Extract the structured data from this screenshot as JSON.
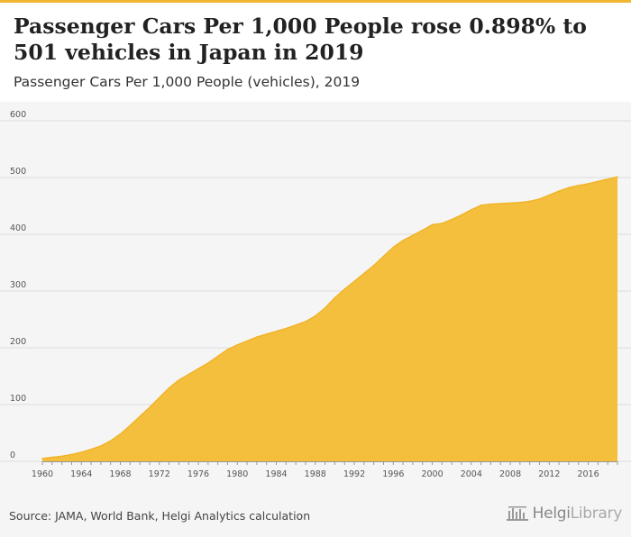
{
  "header": {
    "title": "Passenger Cars Per 1,000 People rose 0.898% to 501 vehicles in Japan in 2019",
    "subtitle": "Passenger Cars Per 1,000 People (vehicles), 2019"
  },
  "footer": {
    "source": "Source: JAMA, World Bank, Helgi Analytics calculation",
    "logo_main": "Helgi",
    "logo_suffix": "Library"
  },
  "colors": {
    "area_fill": "#f5bf3e",
    "area_stroke": "#f0b429",
    "accent_bar": "#f2b632",
    "grid": "#dddddd"
  },
  "chart_data": {
    "type": "area",
    "title": "Passenger Cars Per 1,000 People (vehicles), 2019",
    "xlabel": "",
    "ylabel": "",
    "xlim": [
      1960,
      2019
    ],
    "ylim": [
      0,
      600
    ],
    "yticks": [
      0,
      100,
      200,
      300,
      400,
      500,
      600
    ],
    "xticks": [
      1960,
      1964,
      1968,
      1972,
      1976,
      1980,
      1984,
      1988,
      1992,
      1996,
      2000,
      2004,
      2008,
      2012,
      2016
    ],
    "grid": true,
    "series": [
      {
        "name": "Passenger Cars Per 1,000 People",
        "x": [
          1960,
          1961,
          1962,
          1963,
          1964,
          1965,
          1966,
          1967,
          1968,
          1969,
          1970,
          1971,
          1972,
          1973,
          1974,
          1975,
          1976,
          1977,
          1978,
          1979,
          1980,
          1981,
          1982,
          1983,
          1984,
          1985,
          1986,
          1987,
          1988,
          1989,
          1990,
          1991,
          1992,
          1993,
          1994,
          1995,
          1996,
          1997,
          1998,
          1999,
          2000,
          2001,
          2002,
          2003,
          2004,
          2005,
          2006,
          2007,
          2008,
          2009,
          2010,
          2011,
          2012,
          2013,
          2014,
          2015,
          2016,
          2017,
          2018,
          2019
        ],
        "values": [
          5,
          7,
          9,
          12,
          16,
          21,
          27,
          36,
          48,
          63,
          79,
          95,
          112,
          129,
          143,
          153,
          163,
          173,
          185,
          197,
          205,
          212,
          219,
          224,
          229,
          234,
          240,
          246,
          256,
          270,
          288,
          303,
          317,
          331,
          345,
          361,
          377,
          389,
          398,
          407,
          417,
          419,
          426,
          434,
          443,
          451,
          453,
          454,
          455,
          456,
          458,
          462,
          469,
          476,
          482,
          486,
          489,
          493,
          497,
          501
        ]
      }
    ]
  }
}
